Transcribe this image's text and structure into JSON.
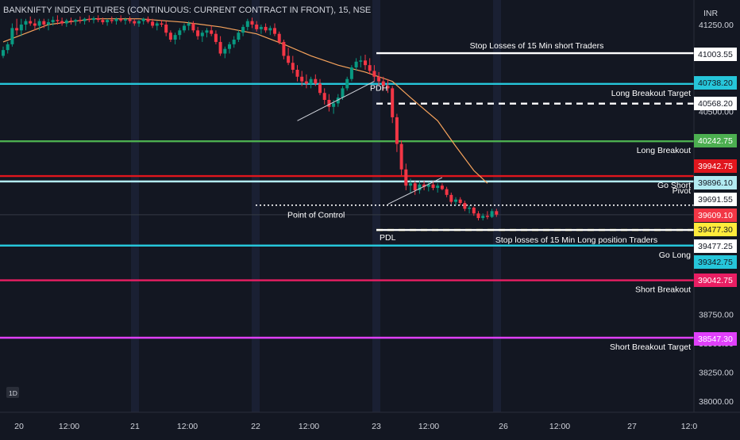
{
  "chart_title": "BANKNIFTY INDEX FUTURES (CONTINUOUS: CURRENT CONTRACT IN FRONT), 15, NSE",
  "currency": "INR",
  "interval_badge": "1D",
  "chart_data": {
    "type": "candlestick",
    "title": "BANKNIFTY INDEX FUTURES (CONTINUOUS: CURRENT CONTRACT IN FRONT), 15, NSE",
    "ylim": [
      37950,
      41350
    ],
    "y_ticks": [
      {
        "value": 41250,
        "label": "41250.00"
      },
      {
        "value": 40500,
        "label": "40500.00"
      },
      {
        "value": 38750,
        "label": "38750.00"
      },
      {
        "value": 38500,
        "label": "38500.00"
      },
      {
        "value": 38250,
        "label": "38250.00"
      },
      {
        "value": 38000,
        "label": "38000.00"
      }
    ],
    "x_ticks": [
      "20",
      "12:00",
      "21",
      "12:00",
      "22",
      "12:00",
      "23",
      "12:00",
      "26",
      "12:00",
      "27",
      "12:0"
    ],
    "levels": [
      {
        "key": "sl_short",
        "value": 41003.55,
        "price_label": "41003.55",
        "label": "Stop Losses of 15 Min short Traders",
        "color": "#ffffff",
        "badge_bg": "#ffffff",
        "badge_fg": "#131722",
        "start_day": 23,
        "dashed": false,
        "label_pos": "mid"
      },
      {
        "key": "lb_target",
        "value": 40738.2,
        "price_label": "40738.20",
        "label": "Long Breakout Target",
        "color": "#26c6da",
        "badge_bg": "#26c6da",
        "badge_fg": "#131722",
        "start_day": 0,
        "dashed": false,
        "label_pos": "right"
      },
      {
        "key": "pdh",
        "value": 40568.2,
        "price_label": "40568.20",
        "label": "",
        "color": "#ffffff",
        "badge_bg": "#ffffff",
        "badge_fg": "#131722",
        "start_day": 23,
        "dashed": true,
        "label_pos": "right"
      },
      {
        "key": "long_breakout",
        "value": 40242.75,
        "price_label": "40242.75",
        "label": "Long Breakout",
        "color": "#4caf50",
        "badge_bg": "#4caf50",
        "badge_fg": "#ffffff",
        "start_day": 0,
        "dashed": false,
        "label_pos": "right"
      },
      {
        "key": "go_short",
        "value": 39942.75,
        "price_label": "39942.75",
        "label": "Go Short",
        "color": "#e0161d",
        "badge_bg": "#e0161d",
        "badge_fg": "#ffffff",
        "start_day": 0,
        "dashed": false,
        "label_pos": "right"
      },
      {
        "key": "pivot",
        "value": 39896.1,
        "price_label": "39896.10",
        "label": "Pivot",
        "color": "#b2ebf2",
        "badge_bg": "#b2ebf2",
        "badge_fg": "#131722",
        "start_day": 0,
        "dashed": false,
        "label_pos": "right"
      },
      {
        "key": "poc",
        "value": 39691.55,
        "price_label": "39691.55",
        "label": "Point of Control",
        "color": "#ffffff",
        "badge_bg": "#ffffff",
        "badge_fg": "#131722",
        "start_day": 22,
        "dashed": "dotted",
        "label_pos": "left"
      },
      {
        "key": "pdl",
        "value": 39477.3,
        "price_label": "39477.30",
        "label": "PDL",
        "color": "#ffeb3b",
        "badge_bg": "#ffeb3b",
        "badge_fg": "#131722",
        "start_day": 23,
        "dashed": true,
        "label_pos": "left"
      },
      {
        "key": "sl_long",
        "value": 39477.25,
        "price_label": "39477.25",
        "label": "Stop losses of 15 Min Long position Traders",
        "color": "#ffffff",
        "badge_bg": "#ffffff",
        "badge_fg": "#131722",
        "start_day": 23,
        "dashed": false,
        "label_pos": "mid"
      },
      {
        "key": "go_long",
        "value": 39342.75,
        "price_label": "39342.75",
        "label": "Go Long",
        "color": "#26c6da",
        "badge_bg": "#26c6da",
        "badge_fg": "#131722",
        "start_day": 0,
        "dashed": false,
        "label_pos": "right"
      },
      {
        "key": "short_breakout",
        "value": 39042.75,
        "price_label": "39042.75",
        "label": "Short Breakout",
        "color": "#e91e63",
        "badge_bg": "#e91e63",
        "badge_fg": "#ffffff",
        "start_day": 0,
        "dashed": false,
        "label_pos": "right"
      },
      {
        "key": "sb_target",
        "value": 38547.3,
        "price_label": "38547.30",
        "label": "Short Breakout Target",
        "color": "#e040fb",
        "badge_bg": "#e040fb",
        "badge_fg": "#ffffff",
        "start_day": 0,
        "dashed": false,
        "label_pos": "right"
      }
    ],
    "last_price": {
      "value": 39609.1,
      "price_label": "39609.10",
      "color": "#f23645"
    },
    "annotations": [
      {
        "text": "PDH",
        "value": 40680
      },
      {
        "text": "PDL",
        "value": 39445
      },
      {
        "text": "Point of Control",
        "value": 39610
      }
    ],
    "candles": [
      [
        40980,
        41060,
        40960,
        41030
      ],
      [
        41030,
        41100,
        41000,
        41080
      ],
      [
        41080,
        41260,
        41060,
        41220
      ],
      [
        41220,
        41300,
        41160,
        41200
      ],
      [
        41200,
        41300,
        41150,
        41250
      ],
      [
        41250,
        41300,
        41200,
        41280
      ],
      [
        41280,
        41320,
        41240,
        41260
      ],
      [
        41260,
        41300,
        41200,
        41240
      ],
      [
        41240,
        41300,
        41200,
        41280
      ],
      [
        41280,
        41300,
        41220,
        41250
      ],
      [
        41250,
        41300,
        41200,
        41270
      ],
      [
        41270,
        41320,
        41240,
        41290
      ],
      [
        41290,
        41330,
        41250,
        41280
      ],
      [
        41280,
        41310,
        41240,
        41260
      ],
      [
        41260,
        41300,
        41230,
        41285
      ],
      [
        41285,
        41310,
        41250,
        41275
      ],
      [
        41275,
        41300,
        41240,
        41290
      ],
      [
        41290,
        41320,
        41260,
        41280
      ],
      [
        41280,
        41310,
        41250,
        41300
      ],
      [
        41300,
        41330,
        41270,
        41290
      ],
      [
        41290,
        41320,
        41260,
        41305
      ],
      [
        41305,
        41330,
        41270,
        41290
      ],
      [
        41290,
        41310,
        41250,
        41270
      ],
      [
        41270,
        41300,
        41240,
        41290
      ],
      [
        41290,
        41320,
        41260,
        41280
      ],
      [
        41280,
        41310,
        41250,
        41300
      ],
      [
        41300,
        41330,
        41270,
        41285
      ],
      [
        41285,
        41310,
        41250,
        41295
      ],
      [
        41295,
        41320,
        41260,
        41280
      ],
      [
        41280,
        41300,
        41240,
        41260
      ],
      [
        41260,
        41290,
        41230,
        41280
      ],
      [
        41280,
        41310,
        41250,
        41300
      ],
      [
        41300,
        41320,
        41260,
        41275
      ],
      [
        41275,
        41300,
        41220,
        41240
      ],
      [
        41240,
        41280,
        41200,
        41260
      ],
      [
        41260,
        41290,
        41230,
        41250
      ],
      [
        41250,
        41280,
        41150,
        41180
      ],
      [
        41180,
        41200,
        41100,
        41120
      ],
      [
        41120,
        41180,
        41080,
        41160
      ],
      [
        41160,
        41220,
        41120,
        41200
      ],
      [
        41200,
        41260,
        41180,
        41240
      ],
      [
        41240,
        41280,
        41200,
        41260
      ],
      [
        41260,
        41280,
        41180,
        41200
      ],
      [
        41200,
        41230,
        41120,
        41150
      ],
      [
        41150,
        41200,
        41100,
        41180
      ],
      [
        41180,
        41220,
        41140,
        41200
      ],
      [
        41200,
        41240,
        41150,
        41170
      ],
      [
        41170,
        41200,
        41080,
        41100
      ],
      [
        41100,
        41150,
        40980,
        41000
      ],
      [
        41000,
        41060,
        40960,
        41040
      ],
      [
        41040,
        41100,
        41000,
        41080
      ],
      [
        41080,
        41150,
        41050,
        41120
      ],
      [
        41120,
        41200,
        41100,
        41180
      ],
      [
        41180,
        41250,
        41150,
        41230
      ],
      [
        41230,
        41300,
        41200,
        41280
      ],
      [
        41280,
        41310,
        41220,
        41250
      ],
      [
        41250,
        41280,
        41190,
        41210
      ],
      [
        41210,
        41250,
        41170,
        41230
      ],
      [
        41230,
        41260,
        41180,
        41200
      ],
      [
        41200,
        41240,
        41160,
        41220
      ],
      [
        41220,
        41260,
        41150,
        41170
      ],
      [
        41170,
        41190,
        41080,
        41100
      ],
      [
        41100,
        41120,
        40950,
        40980
      ],
      [
        40980,
        41050,
        40900,
        40920
      ],
      [
        40920,
        40980,
        40830,
        40860
      ],
      [
        40860,
        40900,
        40760,
        40800
      ],
      [
        40800,
        40850,
        40720,
        40760
      ],
      [
        40760,
        40820,
        40700,
        40740
      ],
      [
        40740,
        40800,
        40700,
        40780
      ],
      [
        40780,
        40820,
        40720,
        40740
      ],
      [
        40740,
        40780,
        40640,
        40660
      ],
      [
        40660,
        40700,
        40560,
        40600
      ],
      [
        40600,
        40650,
        40500,
        40540
      ],
      [
        40540,
        40600,
        40480,
        40570
      ],
      [
        40570,
        40650,
        40540,
        40620
      ],
      [
        40620,
        40720,
        40600,
        40700
      ],
      [
        40700,
        40800,
        40680,
        40780
      ],
      [
        40780,
        40900,
        40760,
        40880
      ],
      [
        40880,
        40960,
        40850,
        40930
      ],
      [
        40930,
        40980,
        40880,
        40940
      ],
      [
        40940,
        40990,
        40860,
        40900
      ],
      [
        40900,
        40960,
        40820,
        40850
      ],
      [
        40850,
        40900,
        40760,
        40800
      ],
      [
        40800,
        40840,
        40720,
        40760
      ],
      [
        40760,
        40800,
        40680,
        40720
      ],
      [
        40720,
        40780,
        40660,
        40700
      ],
      [
        40700,
        40720,
        40400,
        40450
      ],
      [
        40450,
        40480,
        40150,
        40220
      ],
      [
        40220,
        40250,
        39950,
        40000
      ],
      [
        40000,
        40050,
        39820,
        39860
      ],
      [
        39860,
        39920,
        39800,
        39880
      ],
      [
        39880,
        39900,
        39780,
        39820
      ],
      [
        39820,
        39900,
        39790,
        39870
      ],
      [
        39870,
        39900,
        39820,
        39850
      ],
      [
        39850,
        39890,
        39810,
        39870
      ],
      [
        39870,
        39900,
        39820,
        39840
      ],
      [
        39840,
        39880,
        39800,
        39860
      ],
      [
        39860,
        39880,
        39820,
        39830
      ],
      [
        39830,
        39850,
        39760,
        39780
      ],
      [
        39780,
        39800,
        39700,
        39720
      ],
      [
        39720,
        39760,
        39690,
        39740
      ],
      [
        39740,
        39760,
        39690,
        39710
      ],
      [
        39710,
        39730,
        39640,
        39660
      ],
      [
        39660,
        39690,
        39620,
        39670
      ],
      [
        39670,
        39680,
        39600,
        39620
      ],
      [
        39620,
        39640,
        39560,
        39580
      ],
      [
        39580,
        39620,
        39560,
        39600
      ],
      [
        39600,
        39640,
        39570,
        39590
      ],
      [
        39590,
        39660,
        39580,
        39640
      ],
      [
        39640,
        39660,
        39590,
        39610
      ]
    ],
    "ma": [
      [
        0,
        41100
      ],
      [
        10,
        41250
      ],
      [
        20,
        41300
      ],
      [
        30,
        41300
      ],
      [
        40,
        41270
      ],
      [
        48,
        41230
      ],
      [
        56,
        41170
      ],
      [
        62,
        41080
      ],
      [
        68,
        40980
      ],
      [
        74,
        40900
      ],
      [
        80,
        40840
      ],
      [
        86,
        40760
      ],
      [
        90,
        40620
      ],
      [
        96,
        40420
      ],
      [
        100,
        40200
      ],
      [
        104,
        39990
      ],
      [
        107,
        39880
      ]
    ],
    "trend_lines": [
      {
        "from": [
          65,
          40420
        ],
        "to": [
          82,
          40760
        ]
      },
      {
        "from": [
          85,
          39700
        ],
        "to": [
          97,
          39930
        ]
      }
    ]
  }
}
